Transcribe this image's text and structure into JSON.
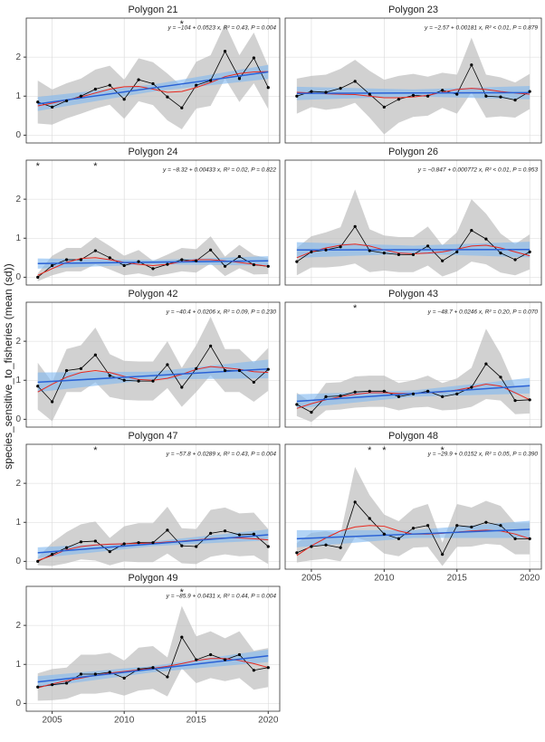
{
  "y_label": "species_sensitive_to_fisheries (mean (sd))",
  "chart_data": [
    {
      "type": "line",
      "title": "Polygon 21",
      "equation": "y = −104 + 0.0523 x, R² = 0.43, P = 0.004",
      "x": [
        2004,
        2005,
        2006,
        2007,
        2008,
        2009,
        2010,
        2011,
        2012,
        2013,
        2014,
        2015,
        2016,
        2017,
        2018,
        2019,
        2020
      ],
      "values": [
        0.85,
        0.72,
        0.88,
        1.0,
        1.18,
        1.28,
        0.92,
        1.42,
        1.32,
        0.98,
        0.7,
        1.28,
        1.4,
        2.15,
        1.45,
        1.98,
        1.22
      ],
      "sd": [
        0.55,
        0.45,
        0.45,
        0.45,
        0.5,
        0.5,
        0.5,
        0.55,
        0.55,
        0.6,
        0.55,
        0.6,
        0.65,
        0.7,
        0.6,
        0.65,
        0.55
      ],
      "smooth": [
        0.75,
        0.82,
        0.9,
        0.98,
        1.08,
        1.18,
        1.24,
        1.25,
        1.18,
        1.1,
        1.12,
        1.22,
        1.35,
        1.5,
        1.58,
        1.62,
        1.63
      ],
      "fit_x": [
        2004,
        2012,
        2020
      ],
      "fit": [
        0.8,
        1.21,
        1.62
      ],
      "fit_lo": [
        0.62,
        1.12,
        1.44
      ],
      "fit_hi": [
        0.98,
        1.3,
        1.8
      ],
      "stars": [
        {
          "x": 2014,
          "label": "*"
        }
      ],
      "xlim": [
        2003.2,
        2020.8
      ],
      "ylim": [
        -0.2,
        3.0
      ],
      "xticks": [
        2005,
        2010,
        2015,
        2020
      ],
      "yticks": [
        0,
        1,
        2
      ],
      "show_xtick_labels": false,
      "show_ytick_labels": true
    },
    {
      "type": "line",
      "title": "Polygon 23",
      "equation": "y = −2.57 + 0.00181 x, R² < 0.01, P = 0.879",
      "x": [
        2004,
        2005,
        2006,
        2007,
        2008,
        2009,
        2010,
        2011,
        2012,
        2013,
        2014,
        2015,
        2016,
        2017,
        2018,
        2019,
        2020
      ],
      "values": [
        1.0,
        1.12,
        1.1,
        1.2,
        1.38,
        1.05,
        0.72,
        0.92,
        1.02,
        1.0,
        1.15,
        1.05,
        1.8,
        1.0,
        0.98,
        0.9,
        1.12
      ],
      "sd": [
        0.45,
        0.4,
        0.45,
        0.5,
        0.55,
        0.6,
        0.7,
        0.6,
        0.55,
        0.5,
        0.45,
        0.5,
        0.7,
        0.55,
        0.5,
        0.45,
        0.45
      ],
      "smooth": [
        1.1,
        1.08,
        1.06,
        1.05,
        1.04,
        1.0,
        0.96,
        0.96,
        0.98,
        1.02,
        1.1,
        1.17,
        1.2,
        1.17,
        1.12,
        1.08,
        1.05
      ],
      "fit_x": [
        2004,
        2012,
        2020
      ],
      "fit": [
        1.07,
        1.08,
        1.09
      ],
      "fit_lo": [
        0.9,
        0.99,
        0.92
      ],
      "fit_hi": [
        1.24,
        1.17,
        1.26
      ],
      "stars": [],
      "xlim": [
        2003.2,
        2020.8
      ],
      "ylim": [
        -0.2,
        3.0
      ],
      "xticks": [
        2005,
        2010,
        2015,
        2020
      ],
      "yticks": [
        0,
        1,
        2
      ],
      "show_xtick_labels": false,
      "show_ytick_labels": false
    },
    {
      "type": "line",
      "title": "Polygon 24",
      "equation": "y = −8.32 + 0.00433 x, R² = 0.02, P = 0.822",
      "x": [
        2004,
        2005,
        2006,
        2007,
        2008,
        2009,
        2010,
        2011,
        2012,
        2013,
        2014,
        2015,
        2016,
        2017,
        2018,
        2019,
        2020
      ],
      "values": [
        0.0,
        0.3,
        0.45,
        0.45,
        0.68,
        0.5,
        0.3,
        0.4,
        0.22,
        0.33,
        0.45,
        0.42,
        0.7,
        0.28,
        0.53,
        0.32,
        0.28
      ],
      "sd": [
        0.1,
        0.25,
        0.3,
        0.3,
        0.35,
        0.3,
        0.25,
        0.3,
        0.2,
        0.25,
        0.3,
        0.3,
        0.35,
        0.25,
        0.3,
        0.25,
        0.2
      ],
      "smooth": [
        0.05,
        0.22,
        0.38,
        0.48,
        0.5,
        0.45,
        0.38,
        0.33,
        0.3,
        0.33,
        0.4,
        0.45,
        0.45,
        0.42,
        0.38,
        0.33,
        0.28
      ],
      "fit_x": [
        2004,
        2012,
        2020
      ],
      "fit": [
        0.35,
        0.385,
        0.42
      ],
      "fit_lo": [
        0.22,
        0.33,
        0.3
      ],
      "fit_hi": [
        0.48,
        0.44,
        0.54
      ],
      "stars": [
        {
          "x": 2004,
          "label": "*"
        },
        {
          "x": 2008,
          "label": "*"
        }
      ],
      "xlim": [
        2003.2,
        2020.8
      ],
      "ylim": [
        -0.2,
        3.0
      ],
      "xticks": [
        2005,
        2010,
        2015,
        2020
      ],
      "yticks": [
        0,
        1,
        2
      ],
      "show_xtick_labels": false,
      "show_ytick_labels": true
    },
    {
      "type": "line",
      "title": "Polygon 26",
      "equation": "y = −0.847 + 0.000772 x, R² < 0.01, P = 0.953",
      "x": [
        2004,
        2005,
        2006,
        2007,
        2008,
        2009,
        2010,
        2011,
        2012,
        2013,
        2014,
        2015,
        2016,
        2017,
        2018,
        2019,
        2020
      ],
      "values": [
        0.4,
        0.65,
        0.7,
        0.78,
        1.3,
        0.68,
        0.62,
        0.58,
        0.58,
        0.8,
        0.42,
        0.65,
        1.2,
        0.98,
        0.62,
        0.45,
        0.65
      ],
      "sd": [
        0.35,
        0.4,
        0.45,
        0.5,
        0.95,
        0.55,
        0.45,
        0.45,
        0.45,
        0.5,
        0.4,
        0.5,
        0.8,
        0.65,
        0.5,
        0.4,
        0.45
      ],
      "smooth": [
        0.5,
        0.65,
        0.75,
        0.82,
        0.85,
        0.8,
        0.7,
        0.62,
        0.6,
        0.62,
        0.65,
        0.72,
        0.8,
        0.82,
        0.75,
        0.65,
        0.55
      ],
      "fit_x": [
        2004,
        2012,
        2020
      ],
      "fit": [
        0.7,
        0.705,
        0.71
      ],
      "fit_lo": [
        0.5,
        0.6,
        0.51
      ],
      "fit_hi": [
        0.9,
        0.81,
        0.91
      ],
      "stars": [],
      "xlim": [
        2003.2,
        2020.8
      ],
      "ylim": [
        -0.2,
        3.0
      ],
      "xticks": [
        2005,
        2010,
        2015,
        2020
      ],
      "yticks": [
        0,
        1,
        2
      ],
      "show_xtick_labels": false,
      "show_ytick_labels": false
    },
    {
      "type": "line",
      "title": "Polygon 42",
      "equation": "y = −40.4 + 0.0206 x, R² = 0.09, P = 0.230",
      "x": [
        2004,
        2005,
        2006,
        2007,
        2008,
        2009,
        2010,
        2011,
        2012,
        2013,
        2014,
        2015,
        2016,
        2017,
        2018,
        2019,
        2020
      ],
      "values": [
        0.85,
        0.45,
        1.25,
        1.3,
        1.65,
        1.12,
        1.0,
        0.98,
        0.98,
        1.4,
        0.82,
        1.3,
        1.88,
        1.25,
        1.25,
        0.95,
        1.28
      ],
      "sd": [
        0.6,
        0.5,
        0.55,
        0.6,
        0.7,
        0.55,
        0.5,
        0.5,
        0.5,
        0.6,
        0.5,
        0.6,
        0.75,
        0.55,
        0.55,
        0.5,
        0.55
      ],
      "smooth": [
        0.7,
        0.9,
        1.08,
        1.2,
        1.25,
        1.2,
        1.1,
        1.02,
        1.0,
        1.05,
        1.15,
        1.28,
        1.35,
        1.32,
        1.28,
        1.22,
        1.2
      ],
      "fit_x": [
        2004,
        2012,
        2020
      ],
      "fit": [
        0.95,
        1.12,
        1.29
      ],
      "fit_lo": [
        0.7,
        1.02,
        1.05
      ],
      "fit_hi": [
        1.2,
        1.22,
        1.53
      ],
      "stars": [],
      "xlim": [
        2003.2,
        2020.8
      ],
      "ylim": [
        -0.2,
        3.0
      ],
      "xticks": [
        2005,
        2010,
        2015,
        2020
      ],
      "yticks": [
        0,
        1,
        2
      ],
      "show_xtick_labels": false,
      "show_ytick_labels": true
    },
    {
      "type": "line",
      "title": "Polygon 43",
      "equation": "y = −48.7 + 0.0246 x, R² = 0.20, P = 0.070",
      "x": [
        2004,
        2005,
        2006,
        2007,
        2008,
        2009,
        2010,
        2011,
        2012,
        2013,
        2014,
        2015,
        2016,
        2017,
        2018,
        2019,
        2020
      ],
      "values": [
        0.38,
        0.18,
        0.58,
        0.6,
        0.7,
        0.72,
        0.72,
        0.58,
        0.65,
        0.72,
        0.58,
        0.65,
        0.82,
        1.42,
        1.08,
        0.48,
        0.5
      ],
      "sd": [
        0.3,
        0.25,
        0.35,
        0.35,
        0.4,
        0.4,
        0.4,
        0.35,
        0.35,
        0.4,
        0.35,
        0.4,
        0.5,
        0.9,
        0.6,
        0.35,
        0.35
      ],
      "smooth": [
        0.28,
        0.4,
        0.5,
        0.58,
        0.64,
        0.68,
        0.68,
        0.66,
        0.66,
        0.68,
        0.7,
        0.75,
        0.82,
        0.9,
        0.85,
        0.68,
        0.5
      ],
      "fit_x": [
        2004,
        2012,
        2020
      ],
      "fit": [
        0.46,
        0.66,
        0.86
      ],
      "fit_lo": [
        0.28,
        0.58,
        0.66
      ],
      "fit_hi": [
        0.64,
        0.74,
        1.06
      ],
      "stars": [
        {
          "x": 2008,
          "label": "*"
        }
      ],
      "xlim": [
        2003.2,
        2020.8
      ],
      "ylim": [
        -0.2,
        3.0
      ],
      "xticks": [
        2005,
        2010,
        2015,
        2020
      ],
      "yticks": [
        0,
        1,
        2
      ],
      "show_xtick_labels": false,
      "show_ytick_labels": false
    },
    {
      "type": "line",
      "title": "Polygon 47",
      "equation": "y = −57.8 + 0.0289 x, R² = 0.43, P = 0.004",
      "x": [
        2004,
        2005,
        2006,
        2007,
        2008,
        2009,
        2010,
        2011,
        2012,
        2013,
        2014,
        2015,
        2016,
        2017,
        2018,
        2019,
        2020
      ],
      "values": [
        0.0,
        0.18,
        0.35,
        0.5,
        0.52,
        0.25,
        0.45,
        0.48,
        0.48,
        0.8,
        0.4,
        0.38,
        0.72,
        0.78,
        0.68,
        0.7,
        0.38
      ],
      "sd": [
        0.1,
        0.3,
        0.4,
        0.45,
        0.5,
        0.35,
        0.45,
        0.5,
        0.5,
        0.6,
        0.45,
        0.45,
        0.6,
        0.6,
        0.55,
        0.55,
        0.45
      ],
      "smooth": [
        0.02,
        0.15,
        0.3,
        0.38,
        0.42,
        0.44,
        0.45,
        0.46,
        0.47,
        0.5,
        0.52,
        0.55,
        0.58,
        0.6,
        0.6,
        0.58,
        0.55
      ],
      "fit_x": [
        2004,
        2012,
        2020
      ],
      "fit": [
        0.22,
        0.45,
        0.68
      ],
      "fit_lo": [
        0.08,
        0.39,
        0.54
      ],
      "fit_hi": [
        0.36,
        0.51,
        0.82
      ],
      "stars": [
        {
          "x": 2008,
          "label": "*"
        }
      ],
      "xlim": [
        2003.2,
        2020.8
      ],
      "ylim": [
        -0.2,
        3.0
      ],
      "xticks": [
        2005,
        2010,
        2015,
        2020
      ],
      "yticks": [
        0,
        1,
        2
      ],
      "show_xtick_labels": false,
      "show_ytick_labels": true
    },
    {
      "type": "line",
      "title": "Polygon 48",
      "equation": "y = −29.9 + 0.0152 x, R² = 0.05, P = 0.390",
      "x": [
        2004,
        2005,
        2006,
        2007,
        2008,
        2009,
        2010,
        2011,
        2012,
        2013,
        2014,
        2015,
        2016,
        2017,
        2018,
        2019,
        2020
      ],
      "values": [
        0.22,
        0.38,
        0.42,
        0.35,
        1.52,
        1.1,
        0.7,
        0.58,
        0.85,
        0.92,
        0.18,
        0.92,
        0.88,
        1.0,
        0.92,
        0.58,
        0.58
      ],
      "sd": [
        0.25,
        0.35,
        0.35,
        0.35,
        0.9,
        0.6,
        0.5,
        0.45,
        0.5,
        0.55,
        0.3,
        0.55,
        0.5,
        0.55,
        0.5,
        0.4,
        0.4
      ],
      "smooth": [
        0.15,
        0.4,
        0.6,
        0.78,
        0.88,
        0.92,
        0.9,
        0.78,
        0.7,
        0.7,
        0.72,
        0.75,
        0.78,
        0.8,
        0.78,
        0.7,
        0.58
      ],
      "fit_x": [
        2004,
        2012,
        2020
      ],
      "fit": [
        0.58,
        0.7,
        0.82
      ],
      "fit_lo": [
        0.36,
        0.6,
        0.6
      ],
      "fit_hi": [
        0.8,
        0.8,
        1.04
      ],
      "stars": [
        {
          "x": 2009,
          "label": "*"
        },
        {
          "x": 2010,
          "label": "*"
        },
        {
          "x": 2014,
          "label": "*"
        }
      ],
      "xlim": [
        2003.2,
        2020.8
      ],
      "ylim": [
        -0.2,
        3.0
      ],
      "xticks": [
        2005,
        2010,
        2015,
        2020
      ],
      "yticks": [
        0,
        1,
        2
      ],
      "show_xtick_labels": true,
      "show_ytick_labels": false
    },
    {
      "type": "line",
      "title": "Polygon 49",
      "equation": "y = −85.9 + 0.0431 x, R² = 0.44, P = 0.004",
      "x": [
        2004,
        2005,
        2006,
        2007,
        2008,
        2009,
        2010,
        2011,
        2012,
        2013,
        2014,
        2015,
        2016,
        2017,
        2018,
        2019,
        2020
      ],
      "values": [
        0.42,
        0.48,
        0.52,
        0.75,
        0.75,
        0.8,
        0.65,
        0.88,
        0.92,
        0.68,
        1.7,
        1.12,
        1.25,
        1.12,
        1.25,
        0.85,
        0.92
      ],
      "sd": [
        0.35,
        0.4,
        0.4,
        0.5,
        0.5,
        0.5,
        0.45,
        0.55,
        0.55,
        0.5,
        0.8,
        0.6,
        0.6,
        0.55,
        0.6,
        0.5,
        0.5
      ],
      "smooth": [
        0.4,
        0.5,
        0.58,
        0.65,
        0.72,
        0.78,
        0.82,
        0.86,
        0.9,
        0.95,
        1.02,
        1.1,
        1.15,
        1.15,
        1.1,
        1.02,
        0.92
      ],
      "fit_x": [
        2004,
        2012,
        2020
      ],
      "fit": [
        0.55,
        0.88,
        1.22
      ],
      "fit_lo": [
        0.4,
        0.8,
        1.06
      ],
      "fit_hi": [
        0.7,
        0.96,
        1.38
      ],
      "stars": [
        {
          "x": 2014,
          "label": "*"
        }
      ],
      "xlim": [
        2003.2,
        2020.8
      ],
      "ylim": [
        -0.2,
        3.0
      ],
      "xticks": [
        2005,
        2010,
        2015,
        2020
      ],
      "yticks": [
        0,
        1,
        2
      ],
      "show_xtick_labels": true,
      "show_ytick_labels": true
    }
  ]
}
